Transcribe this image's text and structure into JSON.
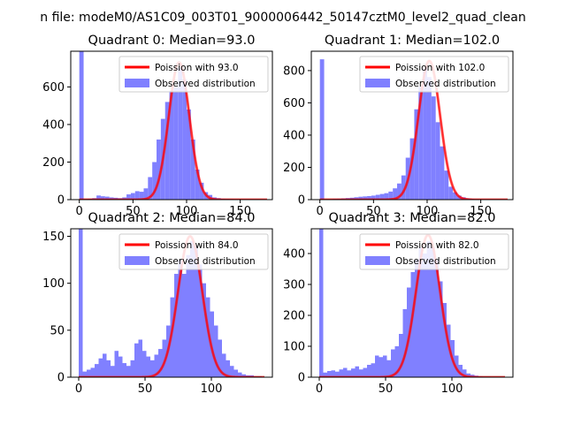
{
  "figure": {
    "suptitle": "n file: modeM0/AS1C09_003T01_9000006442_50147cztM0_level2_quad_clean"
  },
  "colors": {
    "poisson": "#ff0000",
    "observed": "#8080ff",
    "axis": "#000000"
  },
  "chart_data": [
    {
      "type": "bar",
      "title": "Quadrant 0: Median=93.0",
      "xlim": [
        -8,
        180
      ],
      "ylim": [
        0,
        790
      ],
      "xticks": [
        0,
        50,
        100,
        150
      ],
      "yticks": [
        0,
        200,
        400,
        600
      ],
      "bin_width": 4,
      "observed": {
        "name": "Observed distribution",
        "bin_starts": [
          0,
          4,
          8,
          12,
          16,
          20,
          24,
          28,
          32,
          36,
          40,
          44,
          48,
          52,
          56,
          60,
          64,
          68,
          72,
          76,
          80,
          84,
          88,
          92,
          96,
          100,
          104,
          108,
          112,
          116,
          120,
          124,
          128,
          132,
          136,
          140,
          144,
          148,
          152,
          156,
          160,
          164,
          168
        ],
        "values": [
          790,
          3,
          5,
          8,
          22,
          18,
          16,
          12,
          10,
          8,
          12,
          28,
          35,
          45,
          42,
          60,
          120,
          200,
          320,
          430,
          520,
          580,
          600,
          700,
          640,
          480,
          320,
          160,
          90,
          40,
          25,
          12,
          8,
          5,
          4,
          3,
          2,
          2,
          1,
          1,
          1,
          1,
          0
        ]
      },
      "poisson": {
        "name": "Poission with 93.0",
        "lambda": 93.0,
        "peak": 730,
        "x_range": [
          0,
          175
        ]
      },
      "legend_position": "top-right"
    },
    {
      "type": "bar",
      "title": "Quadrant 1: Median=102.0",
      "xlim": [
        -8,
        180
      ],
      "ylim": [
        0,
        920
      ],
      "xticks": [
        0,
        50,
        100,
        150
      ],
      "yticks": [
        0,
        200,
        400,
        600,
        800
      ],
      "bin_width": 4,
      "observed": {
        "name": "Observed distribution",
        "bin_starts": [
          0,
          4,
          8,
          12,
          16,
          20,
          24,
          28,
          32,
          36,
          40,
          44,
          48,
          52,
          56,
          60,
          64,
          68,
          72,
          76,
          80,
          84,
          88,
          92,
          96,
          100,
          104,
          108,
          112,
          116,
          120,
          124,
          128,
          132,
          136,
          140,
          144,
          148,
          152,
          156,
          160,
          164,
          168
        ],
        "values": [
          870,
          2,
          3,
          5,
          6,
          8,
          10,
          12,
          15,
          18,
          20,
          22,
          25,
          30,
          35,
          40,
          50,
          70,
          100,
          150,
          260,
          380,
          560,
          700,
          820,
          760,
          640,
          480,
          330,
          180,
          80,
          45,
          25,
          15,
          8,
          5,
          3,
          2,
          2,
          1,
          1,
          1,
          0
        ]
      },
      "poisson": {
        "name": "Poission with 102.0",
        "lambda": 102.0,
        "peak": 860,
        "x_range": [
          0,
          175
        ]
      },
      "legend_position": "top-right"
    },
    {
      "type": "bar",
      "title": "Quadrant 2: Median=84.0",
      "xlim": [
        -6,
        146
      ],
      "ylim": [
        0,
        158
      ],
      "xticks": [
        0,
        50,
        100
      ],
      "yticks": [
        0,
        50,
        100,
        150
      ],
      "bin_width": 3,
      "observed": {
        "name": "Observed distribution",
        "bin_starts": [
          0,
          3,
          6,
          9,
          12,
          15,
          18,
          21,
          24,
          27,
          30,
          33,
          36,
          39,
          42,
          45,
          48,
          51,
          54,
          57,
          60,
          63,
          66,
          69,
          72,
          75,
          78,
          81,
          84,
          87,
          90,
          93,
          96,
          99,
          102,
          105,
          108,
          111,
          114,
          117,
          120,
          123,
          126,
          129,
          132,
          135,
          138
        ],
        "values": [
          158,
          6,
          8,
          10,
          14,
          20,
          25,
          18,
          12,
          28,
          22,
          15,
          12,
          18,
          36,
          40,
          28,
          22,
          18,
          24,
          30,
          40,
          55,
          85,
          110,
          125,
          110,
          130,
          145,
          140,
          120,
          100,
          85,
          70,
          55,
          40,
          25,
          18,
          12,
          8,
          5,
          3,
          2,
          2,
          1,
          1,
          0
        ]
      },
      "poisson": {
        "name": "Poission with 84.0",
        "lambda": 84.0,
        "peak": 150,
        "x_range": [
          0,
          140
        ]
      },
      "legend_position": "top-right"
    },
    {
      "type": "bar",
      "title": "Quadrant 3: Median=82.0",
      "xlim": [
        -6,
        146
      ],
      "ylim": [
        0,
        480
      ],
      "xticks": [
        0,
        50,
        100
      ],
      "yticks": [
        0,
        100,
        200,
        300,
        400
      ],
      "bin_width": 3,
      "observed": {
        "name": "Observed distribution",
        "bin_starts": [
          0,
          3,
          6,
          9,
          12,
          15,
          18,
          21,
          24,
          27,
          30,
          33,
          36,
          39,
          42,
          45,
          48,
          51,
          54,
          57,
          60,
          63,
          66,
          69,
          72,
          75,
          78,
          81,
          84,
          87,
          90,
          93,
          96,
          99,
          102,
          105,
          108,
          111,
          114,
          117,
          120,
          123,
          126,
          129,
          132,
          135,
          138
        ],
        "values": [
          480,
          15,
          20,
          22,
          18,
          25,
          30,
          22,
          28,
          35,
          25,
          30,
          40,
          45,
          70,
          65,
          70,
          55,
          90,
          100,
          140,
          220,
          290,
          340,
          380,
          420,
          400,
          440,
          420,
          380,
          310,
          240,
          170,
          120,
          70,
          40,
          25,
          12,
          8,
          5,
          3,
          2,
          2,
          1,
          1,
          0,
          0
        ]
      },
      "poisson": {
        "name": "Poission with 82.0",
        "lambda": 82.0,
        "peak": 460,
        "x_range": [
          0,
          140
        ]
      },
      "legend_position": "top-right"
    }
  ]
}
